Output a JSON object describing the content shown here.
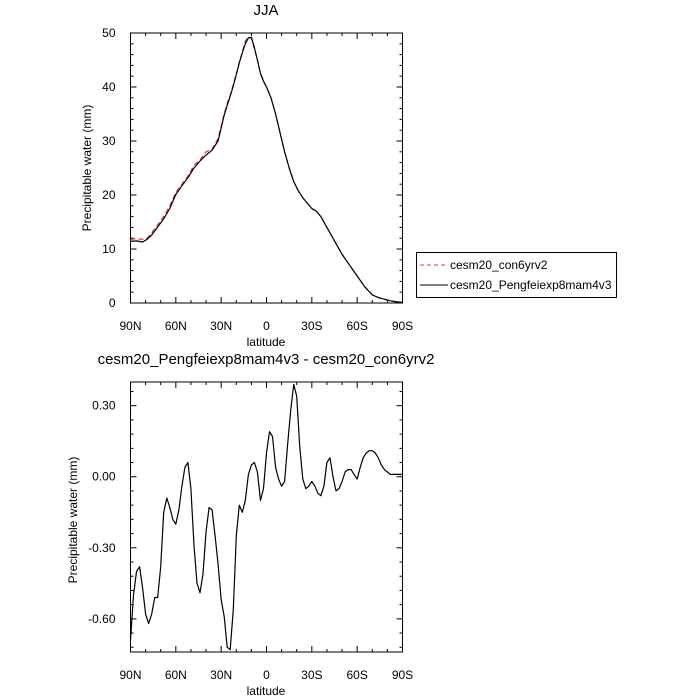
{
  "chart_data": [
    {
      "type": "line",
      "title": "JJA",
      "xlabel": "latitude",
      "ylabel": "Precipitable water (mm)",
      "xlim": [
        90,
        -90
      ],
      "ylim": [
        0,
        50
      ],
      "x_ticks": [
        90,
        60,
        30,
        0,
        -30,
        -60,
        -90
      ],
      "x_tick_labels": [
        "90N",
        "60N",
        "30N",
        "0",
        "30S",
        "60S",
        "90S"
      ],
      "y_ticks": [
        0,
        10,
        20,
        30,
        40,
        50
      ],
      "y_tick_labels": [
        "0",
        "10",
        "20",
        "30",
        "40",
        "50"
      ],
      "grid": false,
      "legend_position": "right, outside plot",
      "series": [
        {
          "name": "cesm20_con6yrv2",
          "color": "#e03030",
          "dash": "dashed",
          "x": [
            90,
            86,
            82,
            79,
            76,
            72,
            68,
            64,
            60,
            56,
            52,
            48,
            44,
            40,
            36,
            32,
            28,
            26,
            24,
            22,
            20,
            18,
            16,
            14,
            12,
            10,
            8,
            6,
            4,
            2,
            0,
            -3,
            -6,
            -9,
            -12,
            -15,
            -18,
            -21,
            -24,
            -27,
            -30,
            -33,
            -36,
            -40,
            -45,
            -50,
            -55,
            -60,
            -65,
            -70,
            -74,
            -78,
            -82,
            -86,
            -90
          ],
          "values": [
            11.8,
            11.9,
            11.8,
            12.0,
            13.0,
            14.5,
            16.0,
            18.0,
            20.5,
            22.0,
            23.5,
            25.5,
            26.5,
            28.0,
            28.5,
            30.5,
            35.0,
            37.0,
            38.5,
            40.5,
            42.5,
            44.5,
            46.5,
            48.5,
            49.3,
            49.0,
            47.0,
            45.0,
            42.5,
            41.0,
            40.0,
            38.0,
            35.0,
            31.5,
            28.0,
            25.0,
            22.5,
            20.8,
            19.5,
            18.5,
            17.5,
            17.0,
            16.0,
            14.0,
            11.5,
            9.0,
            7.0,
            5.0,
            3.0,
            1.5,
            1.0,
            0.7,
            0.4,
            0.2,
            0.1
          ]
        },
        {
          "name": "cesm20_Pengfeiexp8mam4v3",
          "color": "#000000",
          "dash": "solid",
          "x": [
            90,
            86,
            82,
            79,
            76,
            72,
            68,
            64,
            60,
            56,
            52,
            48,
            44,
            40,
            36,
            32,
            28,
            26,
            24,
            22,
            20,
            18,
            16,
            14,
            12,
            10,
            8,
            6,
            4,
            2,
            0,
            -3,
            -6,
            -9,
            -12,
            -15,
            -18,
            -21,
            -24,
            -27,
            -30,
            -33,
            -36,
            -40,
            -45,
            -50,
            -55,
            -60,
            -65,
            -70,
            -74,
            -78,
            -82,
            -86,
            -90
          ],
          "values": [
            11.4,
            11.5,
            11.3,
            11.8,
            12.6,
            14.1,
            15.6,
            17.5,
            20.1,
            21.7,
            23.2,
            25.0,
            26.3,
            27.4,
            28.3,
            30.0,
            34.8,
            36.6,
            38.3,
            40.2,
            42.3,
            44.5,
            46.3,
            48.0,
            49.1,
            49.2,
            47.3,
            45.0,
            42.5,
            41.1,
            40.0,
            38.0,
            35.0,
            31.5,
            28.0,
            25.0,
            22.5,
            20.8,
            19.5,
            18.5,
            17.5,
            17.0,
            16.0,
            14.0,
            11.5,
            9.0,
            7.0,
            5.0,
            3.0,
            1.5,
            1.0,
            0.7,
            0.4,
            0.2,
            0.1
          ]
        }
      ]
    },
    {
      "type": "line",
      "title": "cesm20_Pengfeiexp8mam4v3 - cesm20_con6yrv2",
      "xlabel": "latitude",
      "ylabel": "Precipitable water (mm)",
      "xlim": [
        90,
        -90
      ],
      "ylim": [
        -0.74,
        0.4
      ],
      "x_ticks": [
        90,
        60,
        30,
        0,
        -30,
        -60,
        -90
      ],
      "x_tick_labels": [
        "90N",
        "60N",
        "30N",
        "0",
        "30S",
        "60S",
        "90S"
      ],
      "y_ticks": [
        0.3,
        0.0,
        -0.3,
        -0.6
      ],
      "y_tick_labels": [
        "0.30",
        "0.00",
        "-0.30",
        "-0.60"
      ],
      "grid": false,
      "series": [
        {
          "color": "#000000",
          "dash": "solid",
          "x": [
            90,
            88,
            86,
            84,
            82,
            80,
            78,
            76,
            74,
            72,
            70,
            68,
            66,
            64,
            62,
            60,
            58,
            56,
            54,
            52,
            50,
            48,
            46,
            44,
            42,
            40,
            38,
            36,
            34,
            32,
            30,
            28,
            26,
            24,
            22,
            20,
            18,
            16,
            14,
            12,
            10,
            8,
            6,
            4,
            2,
            0,
            -2,
            -4,
            -6,
            -8,
            -10,
            -12,
            -14,
            -16,
            -18,
            -20,
            -22,
            -24,
            -26,
            -28,
            -30,
            -32,
            -34,
            -36,
            -38,
            -40,
            -42,
            -44,
            -46,
            -48,
            -50,
            -52,
            -54,
            -56,
            -58,
            -60,
            -62,
            -64,
            -66,
            -68,
            -70,
            -72,
            -74,
            -76,
            -78,
            -80,
            -82,
            -84,
            -86,
            -88,
            -90
          ],
          "values": [
            -0.69,
            -0.5,
            -0.4,
            -0.38,
            -0.47,
            -0.58,
            -0.62,
            -0.58,
            -0.51,
            -0.51,
            -0.38,
            -0.15,
            -0.09,
            -0.13,
            -0.18,
            -0.2,
            -0.14,
            -0.04,
            0.04,
            0.06,
            -0.05,
            -0.29,
            -0.45,
            -0.49,
            -0.41,
            -0.23,
            -0.13,
            -0.14,
            -0.25,
            -0.37,
            -0.52,
            -0.59,
            -0.72,
            -0.73,
            -0.56,
            -0.25,
            -0.12,
            -0.15,
            -0.1,
            0.01,
            0.05,
            0.06,
            0.02,
            -0.1,
            -0.05,
            0.1,
            0.19,
            0.17,
            0.04,
            -0.01,
            -0.04,
            -0.02,
            0.14,
            0.28,
            0.39,
            0.34,
            0.13,
            -0.01,
            -0.05,
            -0.04,
            -0.02,
            -0.04,
            -0.07,
            -0.08,
            -0.04,
            0.06,
            0.08,
            0.0,
            -0.06,
            -0.05,
            -0.02,
            0.02,
            0.03,
            0.03,
            0.01,
            -0.01,
            0.04,
            0.08,
            0.1,
            0.11,
            0.11,
            0.1,
            0.08,
            0.05,
            0.03,
            0.02,
            0.01,
            0.01,
            0.01,
            0.01,
            0.01
          ]
        }
      ]
    }
  ]
}
